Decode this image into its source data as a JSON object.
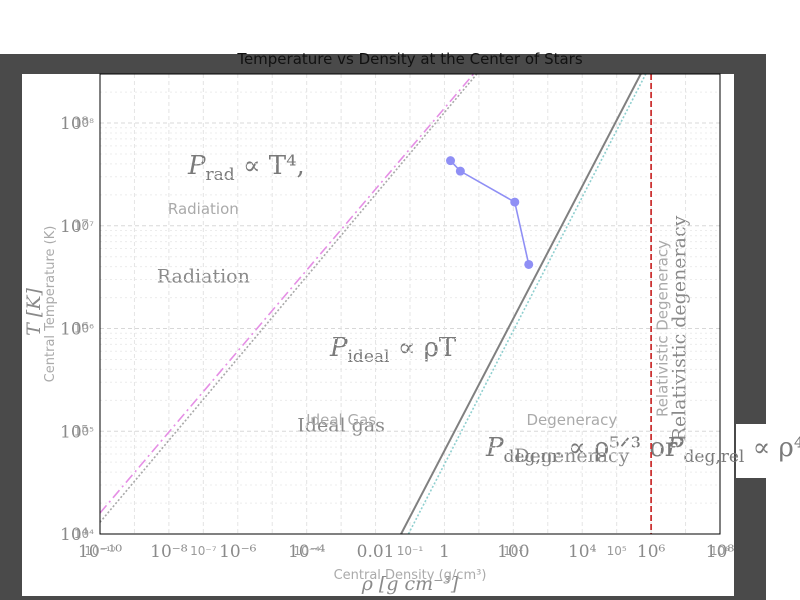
{
  "chart_data": {
    "type": "line",
    "title": "Temperature vs Density at the Center of Stars",
    "xlabel": "Central Density (g/cm³)",
    "ylabel": "Central Temperature (K)",
    "xlabel_bg": "ρ [g cm⁻³]",
    "ylabel_bg": "T [K]",
    "x_scale": "log",
    "y_scale": "log",
    "xlim": [
      1e-10,
      100000000.0
    ],
    "ylim": [
      10000.0,
      300000000.0
    ],
    "grid": true,
    "x_ticks": [
      {
        "value": 1e-10,
        "label": "10⁻¹⁰"
      },
      {
        "value": 1e-07,
        "label": "10⁻⁷"
      },
      {
        "value": 0.0001,
        "label": "10⁻⁴"
      },
      {
        "value": 0.1,
        "label": "10⁻¹"
      },
      {
        "value": 100,
        "label": "10²"
      },
      {
        "value": 100000.0,
        "label": "10⁵"
      },
      {
        "value": 100000000.0,
        "label": "10⁸"
      }
    ],
    "x_ticks_bg": [
      {
        "value": 1e-10,
        "label": "10⁻¹⁰"
      },
      {
        "value": 1e-08,
        "label": "10⁻⁸"
      },
      {
        "value": 1e-06,
        "label": "10⁻⁶"
      },
      {
        "value": 0.0001,
        "label": "10⁻⁴"
      },
      {
        "value": 0.01,
        "label": "0.01"
      },
      {
        "value": 1,
        "label": "1"
      },
      {
        "value": 100,
        "label": "100"
      },
      {
        "value": 10000.0,
        "label": "10⁴"
      },
      {
        "value": 1000000.0,
        "label": "10⁶"
      },
      {
        "value": 100000000.0,
        "label": "10⁸"
      }
    ],
    "y_ticks": [
      {
        "value": 10000.0,
        "label": "10⁴"
      },
      {
        "value": 100000.0,
        "label": "10⁵"
      },
      {
        "value": 1000000.0,
        "label": "10⁶"
      },
      {
        "value": 10000000.0,
        "label": "10⁷"
      },
      {
        "value": 100000000.0,
        "label": "10⁸"
      }
    ],
    "series": [
      {
        "color": "#8f8ff5",
        "x": [
          1.5,
          2.9,
          110,
          280
        ],
        "y": [
          43000000.0,
          34000000.0,
          17000000.0,
          4200000.0
        ]
      }
    ],
    "lines": [
      {
        "style": "dotted",
        "color": "#a9a9a9",
        "points": [
          [
            1e-10,
            13000.0
          ],
          [
            8.7,
            300000000.0
          ]
        ]
      },
      {
        "style": "dashdot",
        "color": "#e58fe5",
        "points": [
          [
            1e-10,
            16000.0
          ],
          [
            7,
            300000000.0
          ]
        ]
      },
      {
        "style": "solid",
        "color": "#808080",
        "points": [
          [
            0.055,
            10000.0
          ],
          [
            500000.0,
            300000000.0
          ]
        ]
      },
      {
        "style": "dotted",
        "color": "#8fcfcf",
        "points": [
          [
            0.09,
            10000.0
          ],
          [
            700000.0,
            300000000.0
          ]
        ]
      }
    ],
    "vline": {
      "x": 1000000.0,
      "color": "#cc3333",
      "style": "dashed"
    },
    "annotations": [
      {
        "text": "Radiation",
        "x": 1e-07,
        "y": 13000000.0,
        "color": "#aaaaaa"
      },
      {
        "text": "Ideal Gas",
        "x": 0.001,
        "y": 115000.0,
        "color": "#aaaaaa"
      },
      {
        "text": "Degeneracy",
        "x": 5000.0,
        "y": 115000.0,
        "color": "#aaaaaa"
      },
      {
        "text": "Relativistic Degeneracy",
        "x": 3000000.0,
        "y": 1000000.0,
        "color": "#aaaaaa",
        "rotate": -90
      }
    ],
    "bg_annotations": [
      {
        "text": "Radiation",
        "x": 1e-07,
        "y": 2800000.0
      },
      {
        "text": "Ideal gas",
        "x": 0.001,
        "y": 100000.0
      },
      {
        "text": "Degeneracy",
        "x": 5000.0,
        "y": 50000.0
      },
      {
        "text": "Relativistic degeneracy",
        "x": 10000000.0,
        "y": 1000000.0,
        "rotate": -90
      }
    ],
    "equations": [
      {
        "name": "rad",
        "lhs": "P",
        "sub": "rad",
        "rhs": " ∝ T⁴,"
      },
      {
        "name": "ideal",
        "lhs": "P",
        "sub": "ideal",
        "rhs": " ∝ ρT"
      },
      {
        "name": "deg-nr",
        "lhs": "P",
        "sub": "deg,nr",
        "rhs": " ∝ ρ⁵ᐟ³ or "
      },
      {
        "name": "deg-rel",
        "lhs": "P",
        "sub": "deg,rel",
        "rhs": " ∝ ρ⁴"
      }
    ]
  }
}
